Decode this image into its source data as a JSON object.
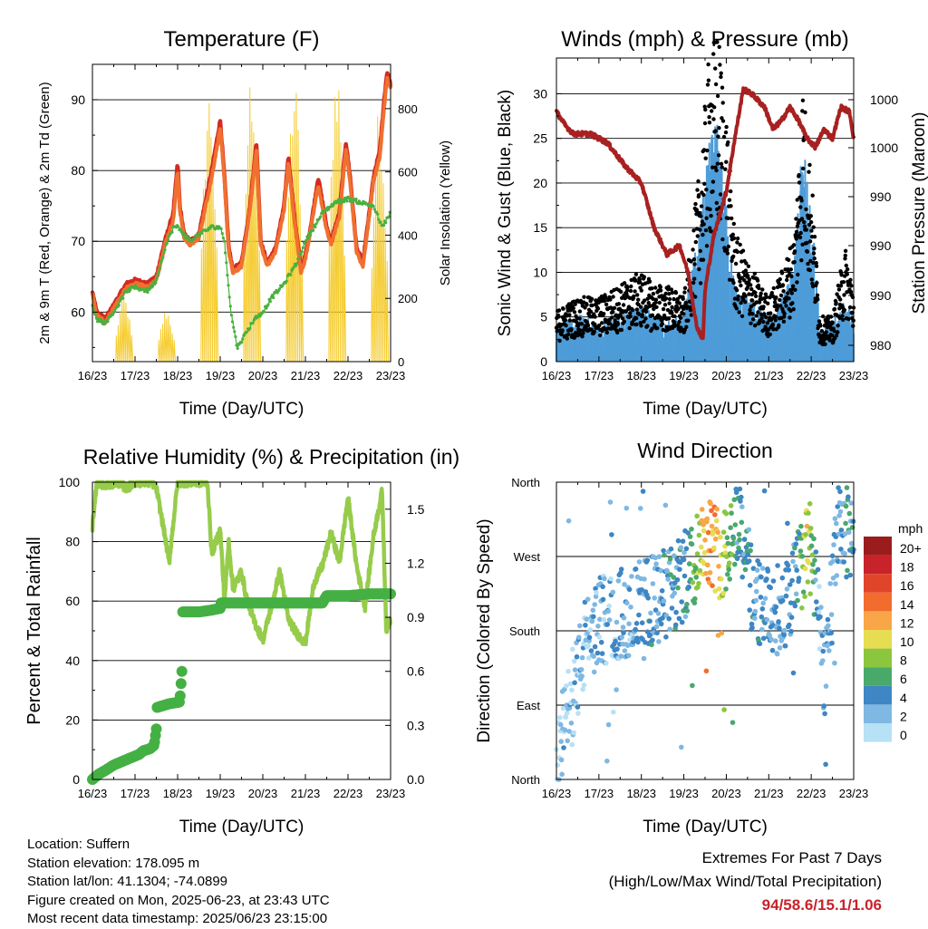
{
  "charts": {
    "temperature": {
      "title": "Temperature (F)",
      "xlabel": "Time (Day/UTC)",
      "ylabel_left": "2m & 9m T (Red, Orange) & 2m Td (Green)",
      "ylabel_right": "Solar Insolation (Yellow)"
    },
    "winds": {
      "title": "Winds (mph) & Pressure (mb)",
      "xlabel": "Time (Day/UTC)",
      "ylabel_left": "Sonic Wind & Gust (Blue, Black)",
      "ylabel_right": "Station Pressure (Maroon)"
    },
    "rh": {
      "title": "Relative Humidity (%) & Precipitation (in)",
      "xlabel": "Time (Day/UTC)",
      "ylabel_left": "Percent & Total Rainfall"
    },
    "winddir": {
      "title": "Wind Direction",
      "xlabel": "Time (Day/UTC)",
      "ylabel_left": "Direction (Colored By Speed)",
      "legend_title": "mph"
    }
  },
  "chart_data": [
    {
      "type": "line",
      "title": "Temperature (F)",
      "xlabel": "Time (Day/UTC)",
      "ylabel": "2m & 9m T (Red, Orange) & 2m Td (Green)",
      "y2label": "Solar Insolation (Yellow)",
      "x_ticks": [
        "16/23",
        "17/23",
        "18/23",
        "19/23",
        "20/23",
        "21/23",
        "22/23",
        "23/23"
      ],
      "ylim": [
        53,
        95
      ],
      "yticks": [
        60,
        70,
        80,
        90
      ],
      "y2lim": [
        0,
        940
      ],
      "y2ticks": [
        0,
        200,
        400,
        600,
        800
      ],
      "series": [
        {
          "name": "2m T",
          "color": "#d42a20",
          "t": [
            0,
            0.1,
            0.3,
            0.5,
            0.8,
            1,
            1.3,
            1.5,
            1.7,
            1.9,
            2,
            2.05,
            2.15,
            2.3,
            2.5,
            2.8,
            3,
            3.1,
            3.2,
            3.3,
            3.5,
            3.7,
            3.85,
            3.95,
            4.1,
            4.3,
            4.5,
            4.6,
            4.75,
            4.9,
            5,
            5.15,
            5.3,
            5.5,
            5.6,
            5.8,
            5.95,
            6.05,
            6.2,
            6.35,
            6.5,
            6.6,
            6.75,
            6.85,
            6.92,
            7
          ],
          "y": [
            63,
            60,
            59,
            61,
            64,
            64.5,
            64,
            65,
            70,
            74,
            81,
            75,
            71,
            70,
            71,
            80,
            87,
            79,
            69,
            66,
            67,
            75,
            84,
            70,
            67,
            69,
            75,
            82,
            73,
            66,
            68,
            73,
            79,
            72,
            70,
            74,
            84,
            79,
            69,
            67,
            74,
            79,
            83,
            90,
            94,
            92
          ]
        },
        {
          "name": "9m T",
          "color": "#f07030",
          "t": [
            0,
            0.1,
            0.3,
            0.5,
            0.8,
            1,
            1.3,
            1.5,
            1.7,
            1.9,
            2,
            2.05,
            2.15,
            2.3,
            2.5,
            2.8,
            3,
            3.1,
            3.2,
            3.3,
            3.5,
            3.7,
            3.85,
            3.95,
            4.1,
            4.3,
            4.5,
            4.6,
            4.75,
            4.9,
            5,
            5.15,
            5.3,
            5.5,
            5.6,
            5.8,
            5.95,
            6.05,
            6.2,
            6.35,
            6.5,
            6.6,
            6.75,
            6.85,
            6.92,
            7
          ],
          "y": [
            62.5,
            59.5,
            58.5,
            60.5,
            63.5,
            64,
            63.5,
            64.5,
            69.5,
            73,
            80,
            74.5,
            70.5,
            69.5,
            70.5,
            79,
            86,
            78.5,
            68.5,
            65.5,
            66.5,
            74.5,
            83,
            69.5,
            66.5,
            68.5,
            74.5,
            81,
            72.5,
            65.5,
            67.5,
            72.5,
            78,
            71.5,
            69.5,
            73.5,
            83,
            78.5,
            68.5,
            66.5,
            73.5,
            78.5,
            82,
            89,
            93,
            91.5
          ]
        },
        {
          "name": "2m Td",
          "color": "#4ab040",
          "t": [
            0,
            0.1,
            0.3,
            0.5,
            0.8,
            1,
            1.3,
            1.5,
            1.7,
            1.9,
            2,
            2.3,
            2.5,
            2.8,
            3,
            3.1,
            3.25,
            3.4,
            3.6,
            3.8,
            4,
            4.2,
            4.5,
            4.8,
            5,
            5.2,
            5.4,
            5.7,
            6,
            6.3,
            6.6,
            6.8,
            7
          ],
          "y": [
            61,
            59,
            58.5,
            60,
            63,
            63.5,
            63,
            64.5,
            69,
            72,
            72,
            70,
            71,
            72,
            72,
            70,
            60,
            55,
            57,
            59,
            60,
            62,
            64,
            67,
            70,
            72,
            74,
            75.5,
            76,
            75.5,
            75,
            72,
            74
          ]
        }
      ],
      "solar": {
        "name": "Solar Insolation",
        "color": "#f5cc30",
        "days": [
          0,
          1,
          2,
          3,
          4,
          5,
          6
        ],
        "peaks": [
          200,
          160,
          830,
          900,
          870,
          920,
          780
        ]
      }
    },
    {
      "type": "line",
      "title": "Winds (mph) & Pressure (mb)",
      "xlabel": "Time (Day/UTC)",
      "ylabel": "Sonic Wind & Gust (Blue, Black)",
      "y2label": "Station Pressure (Maroon)",
      "x_ticks": [
        "16/23",
        "17/23",
        "18/23",
        "19/23",
        "20/23",
        "21/23",
        "22/23",
        "23/23"
      ],
      "ylim": [
        0,
        34
      ],
      "yticks": [
        0,
        5,
        10,
        15,
        20,
        25,
        30
      ],
      "y2_tick_labels": [
        "1000",
        "1000",
        "990",
        "990",
        "990",
        "980"
      ],
      "series": [
        {
          "name": "Sonic Wind",
          "color": "#4e9cd8",
          "t": [
            0,
            0.5,
            1,
            1.5,
            2,
            2.3,
            2.6,
            3,
            3.2,
            3.4,
            3.6,
            3.8,
            4,
            4.2,
            4.5,
            4.8,
            5,
            5.3,
            5.6,
            5.8,
            6,
            6.2,
            6.5,
            6.8,
            7
          ],
          "y": [
            2.5,
            3,
            2.5,
            3,
            3.5,
            3,
            2.5,
            3,
            6,
            9,
            14,
            15,
            10,
            5,
            4,
            3.5,
            3,
            4,
            6,
            14,
            10,
            2.5,
            2.5,
            4,
            3
          ]
        },
        {
          "name": "Gust",
          "color": "#000000",
          "t": [
            0,
            0.5,
            1,
            1.5,
            2,
            2.3,
            2.6,
            3,
            3.2,
            3.4,
            3.6,
            3.8,
            4,
            4.2,
            4.5,
            4.8,
            5,
            5.3,
            5.6,
            5.8,
            6,
            6.2,
            6.5,
            6.8,
            7
          ],
          "y": [
            4,
            5,
            5,
            6,
            7,
            6,
            6,
            5,
            10,
            16,
            24,
            26,
            20,
            10,
            8,
            6,
            5,
            7,
            10,
            22,
            15,
            3.5,
            3.5,
            9,
            6
          ]
        },
        {
          "name": "Station Pressure",
          "color": "#a82020",
          "t": [
            0,
            0.2,
            0.4,
            0.8,
            1.2,
            1.6,
            2,
            2.3,
            2.6,
            2.9,
            3.1,
            3.3,
            3.45,
            3.5,
            3.7,
            4,
            4.2,
            4.4,
            4.6,
            4.9,
            5.1,
            5.3,
            5.5,
            5.7,
            5.9,
            6.1,
            6.3,
            6.5,
            6.7,
            6.9,
            7
          ],
          "y": [
            28,
            26.5,
            25.5,
            25.5,
            24.5,
            22,
            20,
            15,
            12,
            13,
            10,
            4,
            2.5,
            8,
            14,
            19,
            25,
            30.5,
            30,
            28.5,
            26,
            27,
            28.5,
            27,
            25,
            24,
            26,
            25,
            28.5,
            28,
            25
          ]
        }
      ]
    },
    {
      "type": "line",
      "title": "Relative Humidity (%) & Precipitation (in)",
      "xlabel": "Time (Day/UTC)",
      "ylabel": "Percent & Total Rainfall",
      "x_ticks": [
        "16/23",
        "17/23",
        "18/23",
        "19/23",
        "20/23",
        "21/23",
        "22/23",
        "23/23"
      ],
      "ylim": [
        0,
        100
      ],
      "yticks": [
        0,
        20,
        40,
        60,
        80,
        100
      ],
      "y2lim": [
        0,
        1.65
      ],
      "y2ticks": [
        "0.0",
        "0.3",
        "0.6",
        "0.9",
        "1.2",
        "1.5"
      ],
      "series": [
        {
          "name": "Relative Humidity",
          "color": "#96cc4a",
          "t": [
            0,
            0.1,
            0.3,
            0.6,
            0.8,
            1,
            1.2,
            1.4,
            1.5,
            1.7,
            1.8,
            2,
            2.2,
            2.5,
            2.7,
            2.8,
            3,
            3.1,
            3.2,
            3.3,
            3.5,
            3.6,
            3.8,
            4,
            4.2,
            4.4,
            4.6,
            4.8,
            5,
            5.2,
            5.4,
            5.6,
            5.8,
            6,
            6.2,
            6.4,
            6.6,
            6.8,
            6.9,
            7
          ],
          "y": [
            85,
            100,
            99,
            100,
            98,
            100,
            100,
            100,
            98,
            82,
            73,
            100,
            100,
            100,
            100,
            76,
            84,
            60,
            80,
            64,
            70,
            62,
            53,
            47,
            58,
            70,
            54,
            49,
            46,
            66,
            72,
            83,
            73,
            95,
            72,
            58,
            82,
            97,
            50,
            54
          ]
        },
        {
          "name": "Total Rainfall",
          "color": "#44b044",
          "t": [
            0,
            0.15,
            0.3,
            0.5,
            0.7,
            0.9,
            1.1,
            1.2,
            1.35,
            1.45,
            1.5,
            1.52,
            1.8,
            2.05,
            2.1,
            2.12,
            2.2,
            2.5,
            2.8,
            3,
            3.02,
            4,
            5,
            5.4,
            5.5,
            6,
            6.5,
            7
          ],
          "y": [
            0,
            0.03,
            0.05,
            0.08,
            0.1,
            0.12,
            0.14,
            0.16,
            0.17,
            0.19,
            0.28,
            0.4,
            0.42,
            0.43,
            0.6,
            0.93,
            0.93,
            0.93,
            0.94,
            0.95,
            0.98,
            0.98,
            0.98,
            0.98,
            1.02,
            1.02,
            1.03,
            1.03
          ]
        }
      ]
    },
    {
      "type": "scatter",
      "title": "Wind Direction",
      "xlabel": "Time (Day/UTC)",
      "ylabel": "Direction (Colored By Speed)",
      "x_ticks": [
        "16/23",
        "17/23",
        "18/23",
        "19/23",
        "20/23",
        "21/23",
        "22/23",
        "23/23"
      ],
      "y_tick_labels": [
        "North",
        "East",
        "South",
        "West",
        "North"
      ],
      "legend_title": "mph",
      "legend": [
        {
          "label": "20+",
          "color": "#9b1c1c"
        },
        {
          "label": "18",
          "color": "#c8222a"
        },
        {
          "label": "16",
          "color": "#e0452a"
        },
        {
          "label": "14",
          "color": "#f26c2e"
        },
        {
          "label": "12",
          "color": "#f8a648"
        },
        {
          "label": "10",
          "color": "#e6dd52"
        },
        {
          "label": "8",
          "color": "#8cc63f"
        },
        {
          "label": "6",
          "color": "#49a96b"
        },
        {
          "label": "4",
          "color": "#3e86c4"
        },
        {
          "label": "2",
          "color": "#7fb8e2"
        },
        {
          "label": "0",
          "color": "#b7e1f5"
        }
      ]
    }
  ],
  "footer": {
    "location": "Location: Suffern",
    "elevation": "Station elevation: 178.095 m",
    "latlon": "Station lat/lon: 41.1304; -74.0899",
    "created": "Figure created on Mon, 2025-06-23, at 23:43 UTC",
    "recent": "Most recent data timestamp: 2025/06/23 23:15:00",
    "extremes_title": "Extremes For Past 7 Days",
    "extremes_subtitle": "(High/Low/Max Wind/Total Precipitation)",
    "extremes_values": "94/58.6/15.1/1.06"
  }
}
